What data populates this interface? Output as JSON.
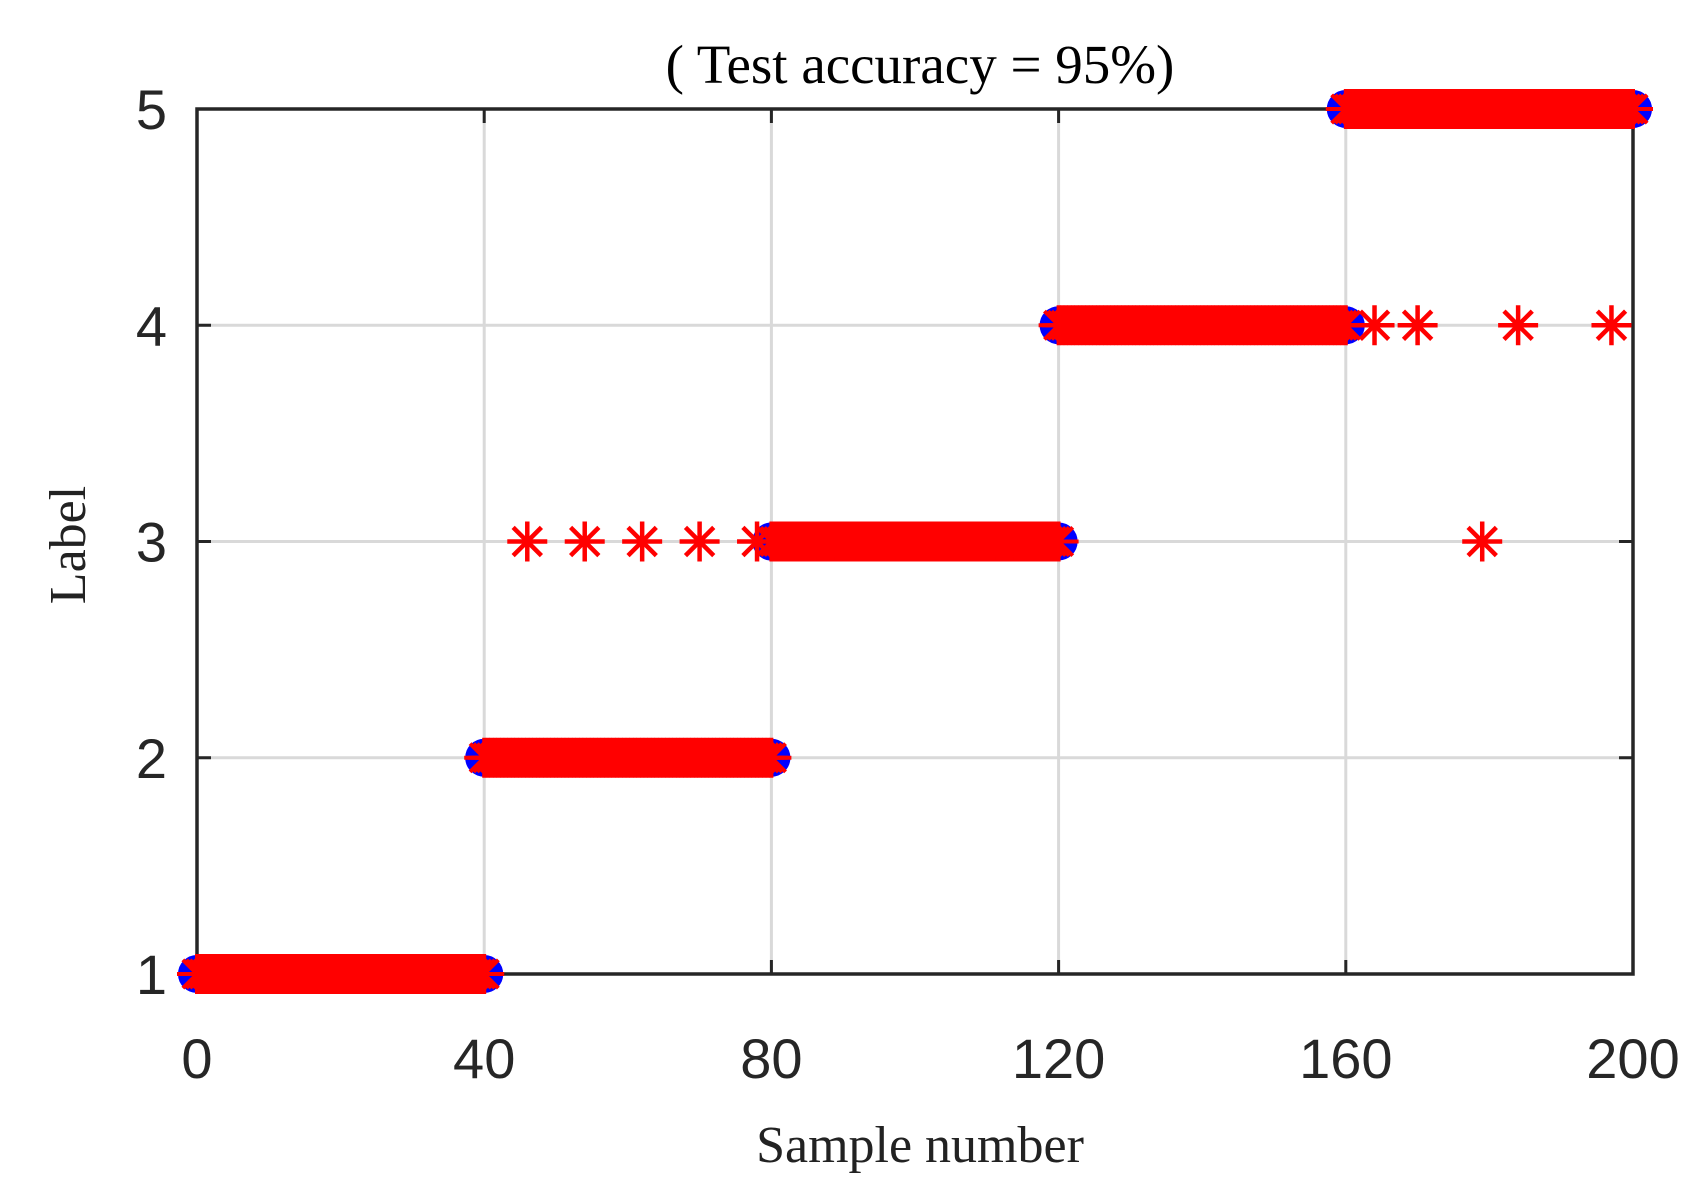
{
  "chart_data": {
    "type": "scatter",
    "title": "( Test accuracy = 95%)",
    "xlabel": "Sample number",
    "ylabel": "Label",
    "xlim": [
      0,
      200
    ],
    "ylim": [
      1,
      5
    ],
    "xticks": [
      0,
      40,
      80,
      120,
      160,
      200
    ],
    "xtick_labels": [
      "0",
      "40",
      "80",
      "120",
      "160",
      "200"
    ],
    "yticks": [
      1,
      2,
      3,
      4,
      5
    ],
    "ytick_labels": [
      "1",
      "2",
      "3",
      "4",
      "5"
    ],
    "grid": true,
    "series": [
      {
        "marker": "circle",
        "color": "#0000ff",
        "segments": [
          {
            "x_start": 0,
            "x_end": 40,
            "y": 1
          },
          {
            "x_start": 40,
            "x_end": 80,
            "y": 2
          },
          {
            "x_start": 80,
            "x_end": 120,
            "y": 3
          },
          {
            "x_start": 120,
            "x_end": 160,
            "y": 4
          },
          {
            "x_start": 160,
            "x_end": 200,
            "y": 5
          }
        ]
      },
      {
        "marker": "asterisk",
        "color": "#ff0000",
        "segments": [
          {
            "x_start": 0,
            "x_end": 40,
            "y": 1
          },
          {
            "x_start": 40,
            "x_end": 80,
            "y": 2
          },
          {
            "x_start": 80,
            "x_end": 120,
            "y": 3
          },
          {
            "x_start": 120,
            "x_end": 160,
            "y": 4
          },
          {
            "x_start": 160,
            "x_end": 200,
            "y": 5
          }
        ],
        "misclassified_points": [
          {
            "x": 46,
            "y": 3
          },
          {
            "x": 54,
            "y": 3
          },
          {
            "x": 62,
            "y": 3
          },
          {
            "x": 70,
            "y": 3
          },
          {
            "x": 78,
            "y": 3
          },
          {
            "x": 164,
            "y": 4
          },
          {
            "x": 170,
            "y": 4
          },
          {
            "x": 179,
            "y": 3
          },
          {
            "x": 184,
            "y": 4
          },
          {
            "x": 197,
            "y": 4
          }
        ]
      }
    ]
  }
}
